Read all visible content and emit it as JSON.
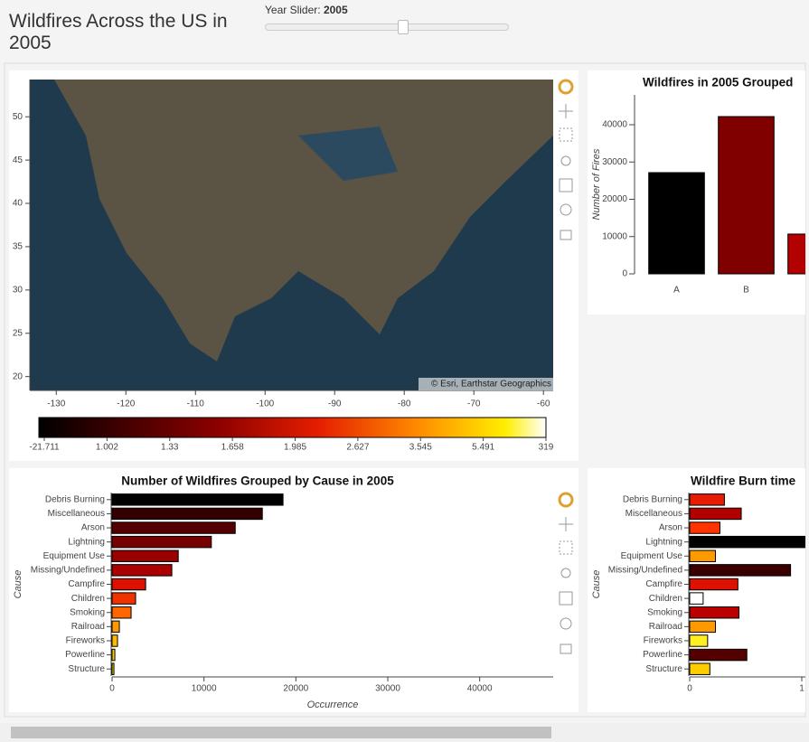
{
  "header": {
    "title": "Wildfires Across the US in 2005"
  },
  "slider": {
    "label": "Year Slider:",
    "value": 2005
  },
  "chart_data": [
    {
      "type": "map",
      "xlim": [
        -133.8,
        -58.6
      ],
      "ylim": [
        18.4,
        54.3
      ],
      "xticks": [
        -130,
        -120,
        -110,
        -100,
        -90,
        -80,
        -70,
        -60
      ],
      "yticks": [
        20,
        25,
        30,
        35,
        40,
        45,
        50
      ],
      "attribution": "© Esri, Earthstar Geographics",
      "colorbar_ticks": [
        -21.711,
        1.002,
        1.33,
        1.658,
        1.985,
        2.627,
        3.545,
        5.491,
        319
      ]
    },
    {
      "type": "bar",
      "title": "Wildfires in 2005 Grouped",
      "y_label": "Number of Fires",
      "categories": [
        "A",
        "B",
        null
      ],
      "values": [
        27150,
        42180,
        10670
      ],
      "colors": [
        "#000000",
        "#800000",
        "#b30000"
      ],
      "ylim": [
        0,
        48000
      ],
      "yticks": [
        0,
        10000,
        20000,
        30000,
        40000
      ]
    },
    {
      "type": "hbar",
      "title": "Number of Wildfires Grouped by Cause in 2005",
      "x_label": "Occurrence",
      "y_label": "Cause",
      "categories": [
        "Debris Burning",
        "Miscellaneous",
        "Arson",
        "Lightning",
        "Equipment Use",
        "Missing/Undefined",
        "Campfire",
        "Children",
        "Smoking",
        "Railroad",
        "Fireworks",
        "Powerline",
        "Structure"
      ],
      "values": [
        18600,
        16350,
        13400,
        10800,
        7200,
        6500,
        3650,
        2560,
        2070,
        790,
        590,
        300,
        200
      ],
      "colors": [
        "#000000",
        "#330000",
        "#550000",
        "#770000",
        "#990000",
        "#aa0000",
        "#dd1100",
        "#ee3300",
        "#ff6600",
        "#ff9900",
        "#ffbb00",
        "#ffcc00",
        "#ffdd00"
      ],
      "xlim": [
        0,
        48000
      ],
      "xticks": [
        0,
        10000,
        20000,
        30000,
        40000
      ]
    },
    {
      "type": "hbar",
      "title": "Wildfire Burn time",
      "y_label": "Cause",
      "categories": [
        "Debris Burning",
        "Miscellaneous",
        "Arson",
        "Lightning",
        "Equipment Use",
        "Missing/Undefined",
        "Campfire",
        "Children",
        "Smoking",
        "Railroad",
        "Fireworks",
        "Powerline",
        "Structure"
      ],
      "values": [
        0.31,
        0.46,
        0.27,
        1.1,
        0.23,
        0.9,
        0.43,
        0.12,
        0.44,
        0.23,
        0.16,
        0.51,
        0.18
      ],
      "colors": [
        "#e81a00",
        "#b00000",
        "#ff3300",
        "#000000",
        "#ff9900",
        "#3a0000",
        "#dd1100",
        "#ffffff",
        "#bb0000",
        "#ff9900",
        "#ffee22",
        "#550000",
        "#ffcc00"
      ],
      "xlim": [
        0,
        1.5
      ],
      "xticks": [
        0,
        1
      ]
    }
  ]
}
